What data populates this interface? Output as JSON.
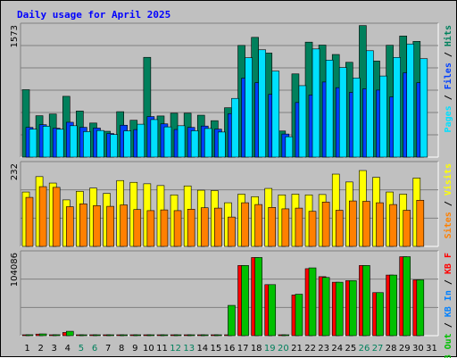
{
  "chart_data": {
    "type": "bar",
    "title": "Daily usage for April 2025",
    "colors": {
      "title": "#0000ff",
      "background": "#c0c0c0",
      "plot": "#c0c0c0",
      "hits": "#00805c",
      "files": "#0040ff",
      "pages": "#00e0ff",
      "visits": "#ffff00",
      "sites": "#ff8000",
      "kbin": "#0080ff",
      "kbout": "#00c000",
      "kbf": "#ff0000",
      "weekend": "#00805c",
      "day_label": "#000000"
    },
    "categories": [
      "1",
      "2",
      "3",
      "4",
      "5",
      "6",
      "7",
      "8",
      "9",
      "10",
      "11",
      "12",
      "13",
      "14",
      "15",
      "16",
      "17",
      "18",
      "19",
      "20",
      "21",
      "22",
      "23",
      "24",
      "25",
      "26",
      "27",
      "28",
      "29",
      "30",
      "31"
    ],
    "weekend_days": [
      "5",
      "6",
      "12",
      "13",
      "19",
      "20",
      "26",
      "27"
    ],
    "panels": [
      {
        "id": "hits",
        "ymax_label": "1573",
        "ylim": [
          0,
          1573
        ],
        "legend": [
          {
            "text": "Hits",
            "color": "#00805c"
          },
          {
            "text": "/",
            "color": "#000000"
          },
          {
            "text": "Files",
            "color": "#0040ff"
          },
          {
            "text": "/",
            "color": "#000000"
          },
          {
            "text": "Pages",
            "color": "#00e0ff"
          }
        ],
        "series": [
          {
            "name": "Hits",
            "color": "#00805c",
            "values": [
              803,
              493,
              513,
              724,
              549,
              406,
              308,
              541,
              439,
              1188,
              490,
              523,
              523,
              499,
              434,
              588,
              1330,
              1426,
              1239,
              311,
              991,
              1369,
              1334,
              1222,
              1129,
              1566,
              1144,
              1332,
              1442,
              1378,
              null
            ]
          },
          {
            "name": "Files",
            "color": "#0040ff",
            "values": [
              354,
              386,
              344,
              415,
              355,
              346,
              281,
              380,
              328,
              483,
              396,
              329,
              354,
              370,
              333,
              518,
              940,
              886,
              747,
              275,
              650,
              739,
              894,
              827,
              770,
              813,
              798,
              717,
              1004,
              886,
              null
            ]
          },
          {
            "name": "Pages",
            "color": "#00e0ff",
            "values": [
              333,
              368,
              332,
              374,
              304,
              317,
              269,
              313,
              392,
              447,
              360,
              374,
              314,
              341,
              299,
              699,
              1183,
              1278,
              1024,
              243,
              851,
              1288,
              1155,
              1067,
              941,
              1267,
              966,
              1187,
              1347,
              1172,
              null
            ]
          }
        ]
      },
      {
        "id": "visits",
        "ymax_label": "232",
        "ylim": [
          0,
          232
        ],
        "legend": [
          {
            "text": "Visits",
            "color": "#ffff00"
          },
          {
            "text": "/",
            "color": "#000000"
          },
          {
            "text": "Sites",
            "color": "#ff8000"
          }
        ],
        "series": [
          {
            "name": "Visits",
            "color": "#ffff00",
            "values": [
              152,
              195,
              177,
              130,
              154,
              163,
              148,
              184,
              179,
              175,
              170,
              144,
              169,
              157,
              156,
              122,
              146,
              139,
              162,
              144,
              146,
              144,
              145,
              202,
              180,
              212,
              193,
              152,
              146,
              191,
              null
            ]
          },
          {
            "name": "Sites",
            "color": "#ff8000",
            "values": [
              137,
              167,
              165,
              111,
              119,
              114,
              112,
              116,
              103,
              100,
              102,
              100,
              104,
              108,
              107,
              82,
              122,
              117,
              109,
              105,
              107,
              98,
              124,
              101,
              127,
              126,
              122,
              117,
              101,
              129,
              null
            ]
          }
        ]
      },
      {
        "id": "kb",
        "ymax_label": "104086",
        "ylim": [
          0,
          104086
        ],
        "legend": [
          {
            "text": "KB F",
            "color": "#ff0000"
          },
          {
            "text": "/",
            "color": "#000000"
          },
          {
            "text": "KB In",
            "color": "#0080ff"
          },
          {
            "text": "/",
            "color": "#000000"
          },
          {
            "text": "KB Out",
            "color": "#00c000"
          }
        ],
        "series": [
          {
            "name": "KB F",
            "color": "#ff0000",
            "values": [
              1000,
              2000,
              1000,
              4000,
              700,
              700,
              700,
              700,
              700,
              700,
              700,
              700,
              700,
              700,
              700,
              700,
              88000,
              98000,
              64000,
              700,
              51000,
              84000,
              74000,
              67000,
              69000,
              88000,
              54000,
              76000,
              99000,
              70000,
              null
            ]
          },
          {
            "name": "KB Out",
            "color": "#00c000",
            "values": [
              1200,
              2200,
              1200,
              5500,
              800,
              800,
              800,
              800,
              800,
              800,
              800,
              800,
              800,
              800,
              800,
              38000,
              88000,
              98000,
              64000,
              800,
              52000,
              85000,
              73000,
              67000,
              69000,
              88000,
              54000,
              76000,
              99000,
              70000,
              null
            ]
          }
        ]
      }
    ]
  }
}
